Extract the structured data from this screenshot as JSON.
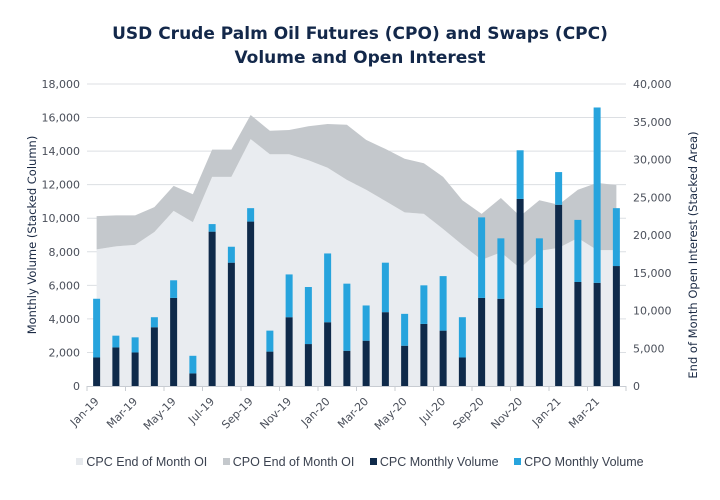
{
  "chart_data": {
    "type": "bar",
    "title_line1": "USD Crude Palm Oil Futures (CPO) and Swaps (CPC)",
    "title_line2": "Volume and Open Interest",
    "ylabel": "Monthly Volume (Stacked Column)",
    "y2label": "End of Month Open Interest (Stacked Area)",
    "ylim": [
      0,
      18000
    ],
    "y2lim": [
      0,
      40000
    ],
    "yticks": [
      "0",
      "2,000",
      "4,000",
      "6,000",
      "8,000",
      "10,000",
      "12,000",
      "14,000",
      "16,000",
      "18,000"
    ],
    "yticks_values": [
      0,
      2000,
      4000,
      6000,
      8000,
      10000,
      12000,
      14000,
      16000,
      18000
    ],
    "y2ticks": [
      "0",
      "5,000",
      "10,000",
      "15,000",
      "20,000",
      "25,000",
      "30,000",
      "35,000",
      "40,000"
    ],
    "y2ticks_values": [
      0,
      5000,
      10000,
      15000,
      20000,
      25000,
      30000,
      35000,
      40000
    ],
    "grid": true,
    "categories": [
      "Jan-19",
      "Feb-19",
      "Mar-19",
      "Apr-19",
      "May-19",
      "Jun-19",
      "Jul-19",
      "Aug-19",
      "Sep-19",
      "Oct-19",
      "Nov-19",
      "Dec-19",
      "Jan-20",
      "Feb-20",
      "Mar-20",
      "Apr-20",
      "May-20",
      "Jun-20",
      "Jul-20",
      "Aug-20",
      "Sep-20",
      "Oct-20",
      "Nov-20",
      "Dec-20",
      "Jan-21",
      "Feb-21",
      "Mar-21",
      "Apr-21"
    ],
    "xtick_labels": [
      "Jan-19",
      "",
      "Mar-19",
      "",
      "May-19",
      "",
      "Jul-19",
      "",
      "Sep-19",
      "",
      "Nov-19",
      "",
      "Jan-20",
      "",
      "Mar-20",
      "",
      "May-20",
      "",
      "Jul-20",
      "",
      "Sep-20",
      "",
      "Nov-20",
      "",
      "Jan-21",
      "",
      "Mar-21",
      ""
    ],
    "legend_position": "bottom",
    "series": [
      {
        "name": "CPC End of Month OI",
        "type": "area",
        "axis": "right",
        "color": "#e9ecf0",
        "values": [
          18100,
          18500,
          18700,
          20400,
          23200,
          21700,
          27700,
          27700,
          32700,
          30700,
          30700,
          29900,
          28900,
          27300,
          26000,
          24500,
          23000,
          22800,
          20800,
          18700,
          16700,
          17700,
          15600,
          17900,
          18300,
          19600,
          18000,
          18000
        ]
      },
      {
        "name": "CPO End of Month OI",
        "type": "area",
        "axis": "right",
        "color": "#c4c8cc",
        "values": [
          4400,
          4100,
          3900,
          3300,
          3300,
          3700,
          3600,
          3600,
          3200,
          3100,
          3200,
          4500,
          5800,
          7300,
          6600,
          6900,
          7100,
          6700,
          6900,
          5900,
          6100,
          7200,
          6900,
          6700,
          5700,
          6400,
          8900,
          8600
        ]
      },
      {
        "name": "CPC Monthly Volume",
        "type": "bar",
        "axis": "left",
        "color": "#0f2a4a",
        "values": [
          1700,
          2300,
          2000,
          3500,
          5250,
          750,
          9200,
          7350,
          9800,
          2050,
          4100,
          2500,
          3800,
          2100,
          2700,
          4400,
          2400,
          3700,
          3300,
          1700,
          5250,
          5200,
          11150,
          4650,
          10800,
          6200,
          6150,
          7150
        ]
      },
      {
        "name": "CPO Monthly Volume",
        "type": "bar",
        "axis": "left",
        "color": "#27a4dd",
        "values": [
          3500,
          700,
          900,
          600,
          1050,
          1050,
          450,
          950,
          800,
          1250,
          2550,
          3400,
          4100,
          4000,
          2100,
          2950,
          1900,
          2300,
          3250,
          2400,
          4800,
          3600,
          2900,
          4150,
          1950,
          3700,
          10450,
          3450
        ]
      }
    ]
  }
}
